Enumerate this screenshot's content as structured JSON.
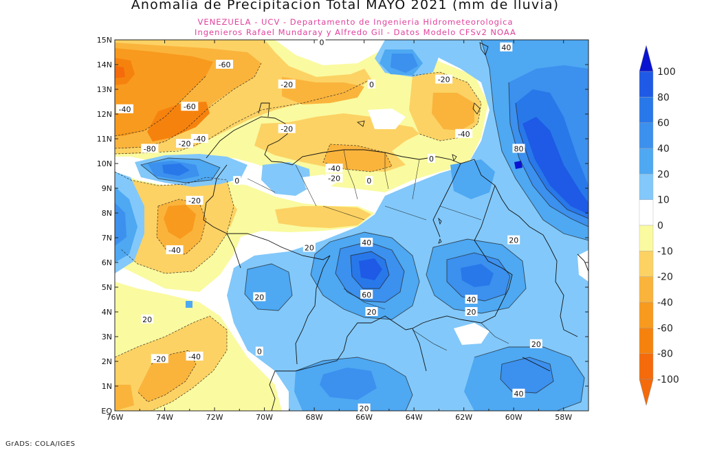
{
  "title": "Anomalia de Precipitacion Total MAYO 2021 (mm de lluvia)",
  "subtitle_line1": "VENEZUELA - UCV - Departamento de Ingenieria Hidrometeorologica",
  "subtitle_line2": "Ingenieros Rafael Mundaray y Alfredo Gil - Datos Modelo CFSv2 NOAA",
  "footer": "GrADS: COLA/IGES",
  "lat_labels": [
    "15N",
    "14N",
    "13N",
    "12N",
    "11N",
    "10N",
    "9N",
    "8N",
    "7N",
    "6N",
    "5N",
    "4N",
    "3N",
    "2N",
    "1N",
    "EQ"
  ],
  "lon_labels": [
    "76W",
    "74W",
    "72W",
    "70W",
    "68W",
    "66W",
    "64W",
    "62W",
    "60W",
    "58W"
  ],
  "legend": {
    "labels": [
      "100",
      "80",
      "60",
      "40",
      "20",
      "10",
      "0",
      "-10",
      "-20",
      "-40",
      "-60",
      "-80",
      "-100"
    ],
    "colors": [
      "#0a14d0",
      "#1e5ae6",
      "#2878ea",
      "#3c90ee",
      "#4ea8f2",
      "#82c8fa",
      "#ffffff",
      "#fafaa0",
      "#fcd264",
      "#fab43c",
      "#f89a1e",
      "#f6820e",
      "#f56a0a"
    ]
  },
  "contour_labels": [
    {
      "text": "-60",
      "lat": 14.0,
      "lon": -71.6
    },
    {
      "text": "-40",
      "lat": 12.2,
      "lon": -75.6
    },
    {
      "text": "-60",
      "lat": 12.3,
      "lon": -73.0
    },
    {
      "text": "-40",
      "lat": 11.0,
      "lon": -72.6
    },
    {
      "text": "-20",
      "lat": 10.8,
      "lon": -73.2
    },
    {
      "text": "-80",
      "lat": 10.6,
      "lon": -74.6
    },
    {
      "text": "-20",
      "lat": 13.2,
      "lon": -69.1
    },
    {
      "text": "-20",
      "lat": 11.4,
      "lon": -69.1
    },
    {
      "text": "0",
      "lat": 14.9,
      "lon": -67.7
    },
    {
      "text": "0",
      "lat": 13.2,
      "lon": -65.7
    },
    {
      "text": "-20",
      "lat": 13.4,
      "lon": -62.8
    },
    {
      "text": "-40",
      "lat": 11.2,
      "lon": -62.0
    },
    {
      "text": "40",
      "lat": 14.7,
      "lon": -60.3
    },
    {
      "text": "80",
      "lat": 10.6,
      "lon": -59.8
    },
    {
      "text": "0",
      "lat": 10.2,
      "lon": -63.3
    },
    {
      "text": "-40",
      "lat": 9.8,
      "lon": -67.2
    },
    {
      "text": "-20",
      "lat": 9.4,
      "lon": -67.2
    },
    {
      "text": "0",
      "lat": 9.3,
      "lon": -65.8
    },
    {
      "text": "0",
      "lat": 9.3,
      "lon": -71.1
    },
    {
      "text": "-20",
      "lat": 8.5,
      "lon": -72.8
    },
    {
      "text": "-40",
      "lat": 6.5,
      "lon": -73.6
    },
    {
      "text": "20",
      "lat": 6.6,
      "lon": -68.2
    },
    {
      "text": "40",
      "lat": 6.8,
      "lon": -65.9
    },
    {
      "text": "20",
      "lat": 6.9,
      "lon": -60.0
    },
    {
      "text": "20",
      "lat": 4.6,
      "lon": -70.2
    },
    {
      "text": "60",
      "lat": 4.7,
      "lon": -65.9
    },
    {
      "text": "40",
      "lat": 4.5,
      "lon": -61.7
    },
    {
      "text": "20",
      "lat": 4.0,
      "lon": -65.7
    },
    {
      "text": "20",
      "lat": 4.0,
      "lon": -61.7
    },
    {
      "text": "20",
      "lat": 3.7,
      "lon": -74.7
    },
    {
      "text": "0",
      "lat": 2.4,
      "lon": -70.2
    },
    {
      "text": "-20",
      "lat": 2.1,
      "lon": -74.2
    },
    {
      "text": "-40",
      "lat": 2.2,
      "lon": -72.8
    },
    {
      "text": "20",
      "lat": 2.7,
      "lon": -59.1
    },
    {
      "text": "40",
      "lat": 0.7,
      "lon": -59.8
    },
    {
      "text": "20",
      "lat": 0.1,
      "lon": -66.0
    }
  ]
}
